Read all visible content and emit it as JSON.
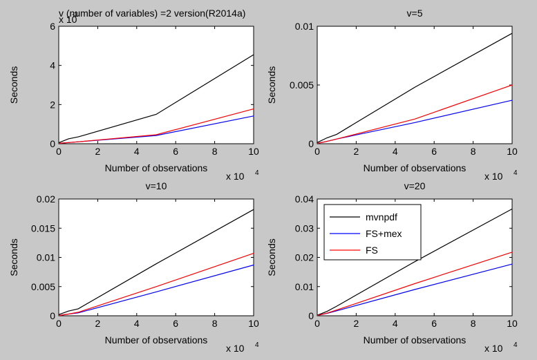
{
  "figure": {
    "background": "#c8c8c8",
    "axes_background": "#ffffff"
  },
  "chart_data": [
    {
      "type": "line",
      "title": "v (number of variables) =2 version(R2014a)",
      "xlabel": "Number of observations",
      "ylabel": "Seconds",
      "x_exponent_label": "x 10",
      "x_exponent": "4",
      "y_exponent_label": "x 10",
      "y_exponent": "-3",
      "xlim": [
        0,
        10
      ],
      "ylim": [
        0,
        6
      ],
      "x_ticks": [
        "0",
        "2",
        "4",
        "6",
        "8",
        "10"
      ],
      "y_ticks": [
        "0",
        "2",
        "4",
        "6"
      ],
      "grid": false,
      "x": [
        0,
        0.5,
        1,
        5,
        10
      ],
      "series": [
        {
          "name": "mvnpdf",
          "color": "#000000",
          "values": [
            0.05,
            0.25,
            0.35,
            1.5,
            4.55
          ]
        },
        {
          "name": "FS+mex",
          "color": "#0000ff",
          "values": [
            0.02,
            0.06,
            0.1,
            0.42,
            1.42
          ]
        },
        {
          "name": "FS",
          "color": "#ff0000",
          "values": [
            0.02,
            0.06,
            0.1,
            0.46,
            1.78
          ]
        }
      ]
    },
    {
      "type": "line",
      "title": "v=5",
      "xlabel": "Number of observations",
      "ylabel": "Seconds",
      "x_exponent_label": "x 10",
      "x_exponent": "4",
      "xlim": [
        0,
        10
      ],
      "ylim": [
        0,
        0.01
      ],
      "x_ticks": [
        "0",
        "2",
        "4",
        "6",
        "8",
        "10"
      ],
      "y_ticks": [
        "0",
        "0.005",
        "0.01"
      ],
      "grid": false,
      "x": [
        0,
        0.5,
        1,
        5,
        10
      ],
      "series": [
        {
          "name": "mvnpdf",
          "color": "#000000",
          "values": [
            0.0001,
            0.0005,
            0.0008,
            0.0048,
            0.0094
          ]
        },
        {
          "name": "FS+mex",
          "color": "#0000ff",
          "values": [
            3e-05,
            0.0002,
            0.0004,
            0.0018,
            0.0037
          ]
        },
        {
          "name": "FS",
          "color": "#ff0000",
          "values": [
            3e-05,
            0.0002,
            0.0004,
            0.0021,
            0.005
          ]
        }
      ]
    },
    {
      "type": "line",
      "title": "v=10",
      "xlabel": "Number of observations",
      "ylabel": "Seconds",
      "x_exponent_label": "x 10",
      "x_exponent": "4",
      "xlim": [
        0,
        10
      ],
      "ylim": [
        0,
        0.02
      ],
      "x_ticks": [
        "0",
        "2",
        "4",
        "6",
        "8",
        "10"
      ],
      "y_ticks": [
        "0",
        "0.005",
        "0.01",
        "0.015",
        "0.02"
      ],
      "grid": false,
      "x": [
        0,
        0.5,
        1,
        5,
        10
      ],
      "series": [
        {
          "name": "mvnpdf",
          "color": "#000000",
          "values": [
            0.0002,
            0.0008,
            0.0012,
            0.0089,
            0.0182
          ]
        },
        {
          "name": "FS+mex",
          "color": "#0000ff",
          "values": [
            5e-05,
            0.0003,
            0.0005,
            0.0041,
            0.0087
          ]
        },
        {
          "name": "FS",
          "color": "#ff0000",
          "values": [
            5e-05,
            0.0003,
            0.0006,
            0.005,
            0.0107
          ]
        }
      ]
    },
    {
      "type": "line",
      "title": "v=20",
      "xlabel": "Number of observations",
      "ylabel": "Seconds",
      "x_exponent_label": "x 10",
      "x_exponent": "4",
      "xlim": [
        0,
        10
      ],
      "ylim": [
        0,
        0.04
      ],
      "x_ticks": [
        "0",
        "2",
        "4",
        "6",
        "8",
        "10"
      ],
      "y_ticks": [
        "0",
        "0.01",
        "0.02",
        "0.03",
        "0.04"
      ],
      "grid": false,
      "legend": "top-left",
      "x": [
        0,
        0.5,
        1,
        5,
        10
      ],
      "series": [
        {
          "name": "mvnpdf",
          "color": "#000000",
          "values": [
            0.0002,
            0.0015,
            0.0033,
            0.0185,
            0.0366
          ]
        },
        {
          "name": "FS+mex",
          "color": "#0000ff",
          "values": [
            0.0001,
            0.0008,
            0.0017,
            0.009,
            0.0177
          ]
        },
        {
          "name": "FS",
          "color": "#ff0000",
          "values": [
            0.0001,
            0.0009,
            0.002,
            0.011,
            0.0218
          ]
        }
      ]
    }
  ]
}
